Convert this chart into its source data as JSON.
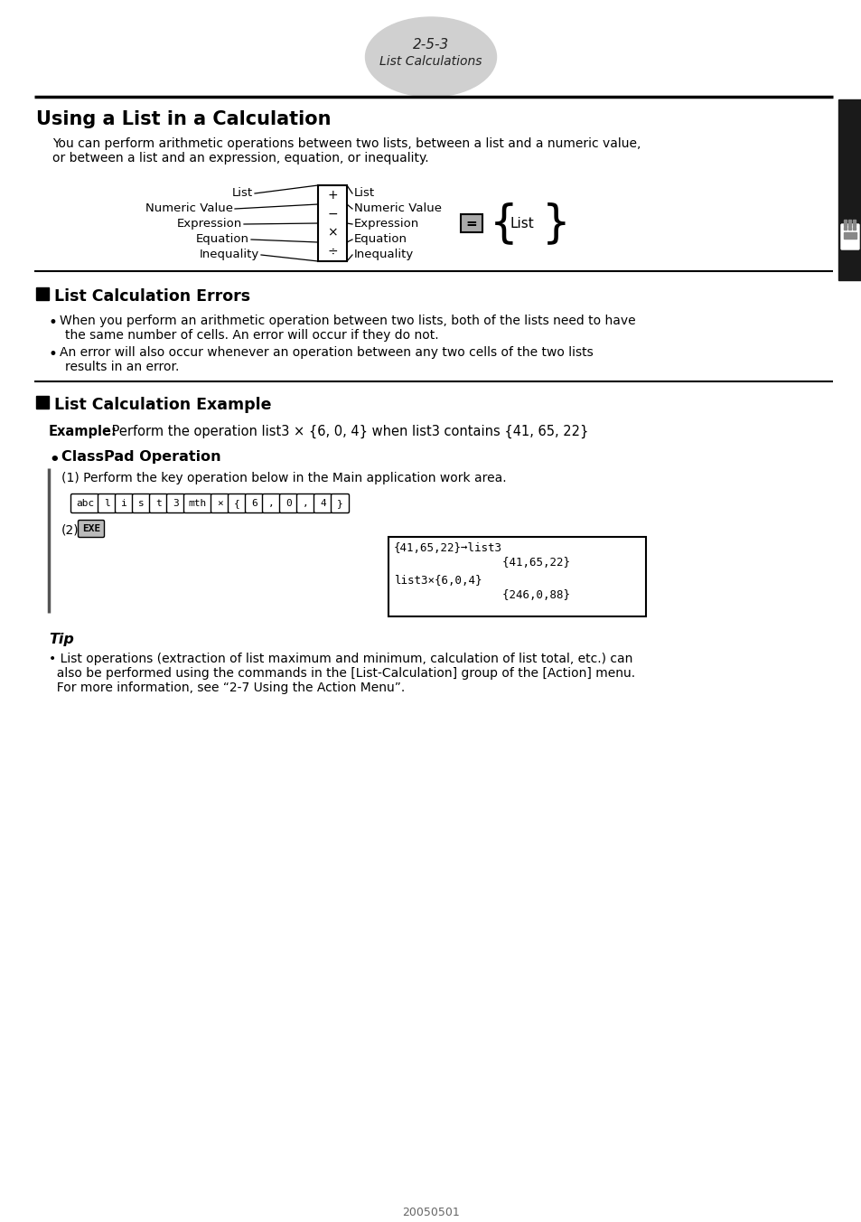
{
  "title_number": "2-5-3",
  "title_subtitle": "List Calculations",
  "section_title": "Using a List in a Calculation",
  "intro_line1": "You can perform arithmetic operations between two lists, between a list and a numeric value,",
  "intro_line2": "or between a list and an expression, equation, or inequality.",
  "left_labels": [
    "List",
    "Numeric Value",
    "Expression",
    "Equation",
    "Inequality"
  ],
  "operators": [
    "+",
    "−",
    "×",
    "÷"
  ],
  "right_labels": [
    "List",
    "Numeric Value",
    "Expression",
    "Equation",
    "Inequality"
  ],
  "section2_title": "List Calculation Errors",
  "bullet1_line1": "When you perform an arithmetic operation between two lists, both of the lists need to have",
  "bullet1_line2": "the same number of cells. An error will occur if they do not.",
  "bullet2_line1": "An error will also occur whenever an operation between any two cells of the two lists",
  "bullet2_line2": "results in an error.",
  "section3_title": "List Calculation Example",
  "example_label": "Example:",
  "example_text": " Perform the operation list3 × {6, 0, 4} when list3 contains {41, 65, 22}",
  "classpad_title": "ClassPad Operation",
  "step1_text": "(1) Perform the key operation below in the Main application work area.",
  "key_buttons": [
    "abc",
    "l",
    "i",
    "s",
    "t",
    "3",
    "mth",
    "×",
    "{",
    "6",
    ",",
    "0",
    ",",
    "4",
    "}"
  ],
  "step2_text": "(2)",
  "exe_button": "EXE",
  "screen_line1": "{41,65,22}➞list3",
  "screen_line2": "                {41,65,22}",
  "screen_line3": "list3×{6,0,4}",
  "screen_line4": "                {246,0,88}",
  "tip_title": "Tip",
  "tip_line1": "• List operations (extraction of list maximum and minimum, calculation of list total, etc.) can",
  "tip_line2": "  also be performed using the commands in the [List-Calculation] group of the [Action] menu.",
  "tip_line3": "  For more information, see “2-7 Using the Action Menu”.",
  "footer_text": "20050501",
  "bg_color": "#ffffff",
  "sidebar_color": "#1a1a1a",
  "light_gray": "#d0d0d0"
}
